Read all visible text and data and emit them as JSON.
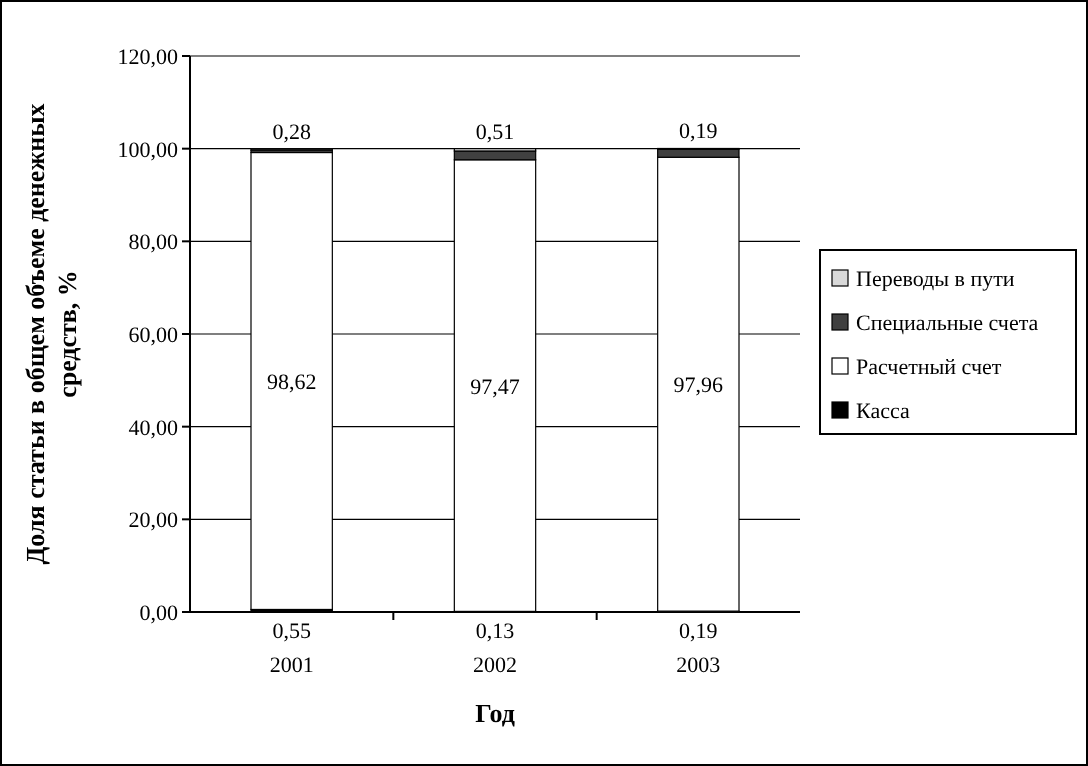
{
  "chart_data": {
    "type": "bar",
    "stacked": true,
    "xlabel": "Год",
    "ylabel": "Доля статьи в общем объеме денежных средств, %",
    "categories": [
      "2001",
      "2002",
      "2003"
    ],
    "series": [
      {
        "name": "Касса",
        "color": "#000000",
        "values": [
          0.55,
          0.13,
          0.19
        ],
        "value_labels": [
          "0,55",
          "0,13",
          "0,19"
        ]
      },
      {
        "name": "Расчетный счет",
        "color": "#ffffff",
        "values": [
          98.62,
          97.47,
          97.96
        ],
        "value_labels": [
          "98,62",
          "97,47",
          "97,96"
        ]
      },
      {
        "name": "Специальные счета",
        "color": "#404040",
        "values": [
          0.5,
          1.9,
          1.7
        ],
        "value_labels": [
          null,
          null,
          null
        ]
      },
      {
        "name": "Переводы в пути",
        "color": "#d9d9d9",
        "values": [
          0.28,
          0.51,
          0.19
        ],
        "value_labels": [
          "0,28",
          "0,51",
          "0,19"
        ]
      }
    ],
    "ylim": [
      0,
      120
    ],
    "yticks": [
      {
        "value": 0,
        "label": "0,00"
      },
      {
        "value": 20,
        "label": "20,00"
      },
      {
        "value": 40,
        "label": "40,00"
      },
      {
        "value": 60,
        "label": "60,00"
      },
      {
        "value": 80,
        "label": "80,00"
      },
      {
        "value": 100,
        "label": "100,00"
      },
      {
        "value": 120,
        "label": "120,00"
      }
    ],
    "grid": "y",
    "legend": "right"
  }
}
